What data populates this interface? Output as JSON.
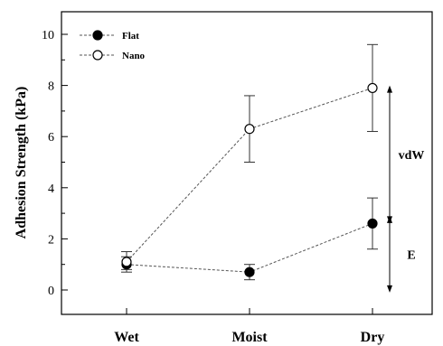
{
  "chart_data": {
    "type": "line",
    "categories": [
      "Wet",
      "Moist",
      "Dry"
    ],
    "ylabel": "Adhesion Strength (kPa)",
    "xlabel": "",
    "ylim": [
      -0.5,
      11.0
    ],
    "yticks": [
      0,
      2,
      4,
      6,
      8,
      10
    ],
    "grid": false,
    "legend_placement": "top-left",
    "series": [
      {
        "name": "Flat",
        "marker": "filled-circle",
        "values": [
          1.0,
          0.7,
          2.6
        ],
        "err_low": [
          0.3,
          0.3,
          1.0
        ],
        "err_high": [
          0.3,
          0.3,
          1.0
        ]
      },
      {
        "name": "Nano",
        "marker": "open-circle",
        "values": [
          1.1,
          6.3,
          7.9
        ],
        "err_low": [
          0.3,
          1.3,
          1.7
        ],
        "err_high": [
          0.4,
          1.3,
          1.7
        ]
      }
    ],
    "annotations": [
      {
        "text": "vdW",
        "from": 2.6,
        "to": 8.0
      },
      {
        "text": "E",
        "from": -0.1,
        "to": 2.9
      }
    ]
  }
}
